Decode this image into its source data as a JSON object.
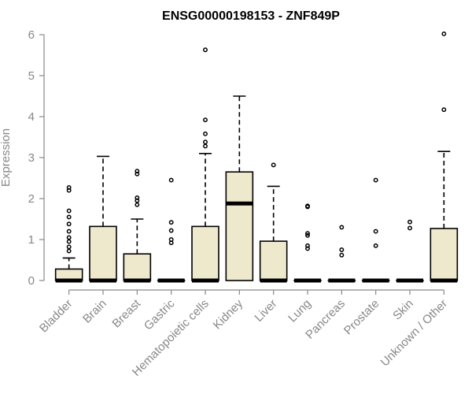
{
  "chart_data": {
    "type": "boxplot",
    "title": "ENSG00000198153 - ZNF849P",
    "ylabel": "Expression",
    "ylim": [
      0,
      6.25
    ],
    "yticks": [
      0,
      1,
      2,
      3,
      4,
      5,
      6
    ],
    "colors": {
      "box_fill": "#EEE8CD",
      "axis": "#888888",
      "stroke": "#000000"
    },
    "categories": [
      "Bladder",
      "Brain",
      "Breast",
      "Gastric",
      "Hematopoietic cells",
      "Kidney",
      "Liver",
      "Lung",
      "Pancreas",
      "Prostate",
      "Skin",
      "Unknown / Other"
    ],
    "boxes": [
      {
        "name": "Bladder",
        "q1": 0,
        "median": 0,
        "q3": 0.28,
        "whisker_low": 0,
        "whisker_high": 0.55,
        "outliers": [
          0.72,
          0.82,
          0.95,
          1.05,
          1.2,
          1.38,
          1.55,
          1.7,
          2.2,
          2.27
        ]
      },
      {
        "name": "Brain",
        "q1": 0,
        "median": 0,
        "q3": 1.32,
        "whisker_low": 0,
        "whisker_high": 3.03,
        "outliers": []
      },
      {
        "name": "Breast",
        "q1": 0,
        "median": 0,
        "q3": 0.65,
        "whisker_low": 0,
        "whisker_high": 1.5,
        "outliers": [
          1.85,
          1.95,
          2.02,
          2.6,
          2.67
        ]
      },
      {
        "name": "Gastric",
        "q1": 0,
        "median": 0,
        "q3": 0,
        "whisker_low": 0,
        "whisker_high": 0,
        "outliers": [
          0.92,
          1.0,
          1.22,
          1.42,
          2.45
        ]
      },
      {
        "name": "Hematopoietic cells",
        "q1": 0,
        "median": 0,
        "q3": 1.32,
        "whisker_low": 0,
        "whisker_high": 3.1,
        "outliers": [
          3.28,
          3.38,
          3.58,
          3.92,
          5.63
        ]
      },
      {
        "name": "Kidney",
        "q1": 0,
        "median": 1.88,
        "q3": 2.65,
        "whisker_low": 0,
        "whisker_high": 4.5,
        "outliers": []
      },
      {
        "name": "Liver",
        "q1": 0,
        "median": 0,
        "q3": 0.96,
        "whisker_low": 0,
        "whisker_high": 2.3,
        "outliers": [
          2.82
        ]
      },
      {
        "name": "Lung",
        "q1": 0,
        "median": 0,
        "q3": 0,
        "whisker_low": 0,
        "whisker_high": 0,
        "outliers": [
          0.78,
          0.85,
          1.1,
          1.15,
          1.8,
          1.82
        ]
      },
      {
        "name": "Pancreas",
        "q1": 0,
        "median": 0,
        "q3": 0,
        "whisker_low": 0,
        "whisker_high": 0,
        "outliers": [
          0.62,
          0.75,
          1.3
        ]
      },
      {
        "name": "Prostate",
        "q1": 0,
        "median": 0,
        "q3": 0,
        "whisker_low": 0,
        "whisker_high": 0,
        "outliers": [
          0.85,
          1.2,
          2.45
        ]
      },
      {
        "name": "Skin",
        "q1": 0,
        "median": 0,
        "q3": 0,
        "whisker_low": 0,
        "whisker_high": 0,
        "outliers": [
          1.28,
          1.43
        ]
      },
      {
        "name": "Unknown / Other",
        "q1": 0,
        "median": 0,
        "q3": 1.27,
        "whisker_low": 0,
        "whisker_high": 3.15,
        "outliers": [
          4.17,
          6.02
        ]
      }
    ]
  }
}
